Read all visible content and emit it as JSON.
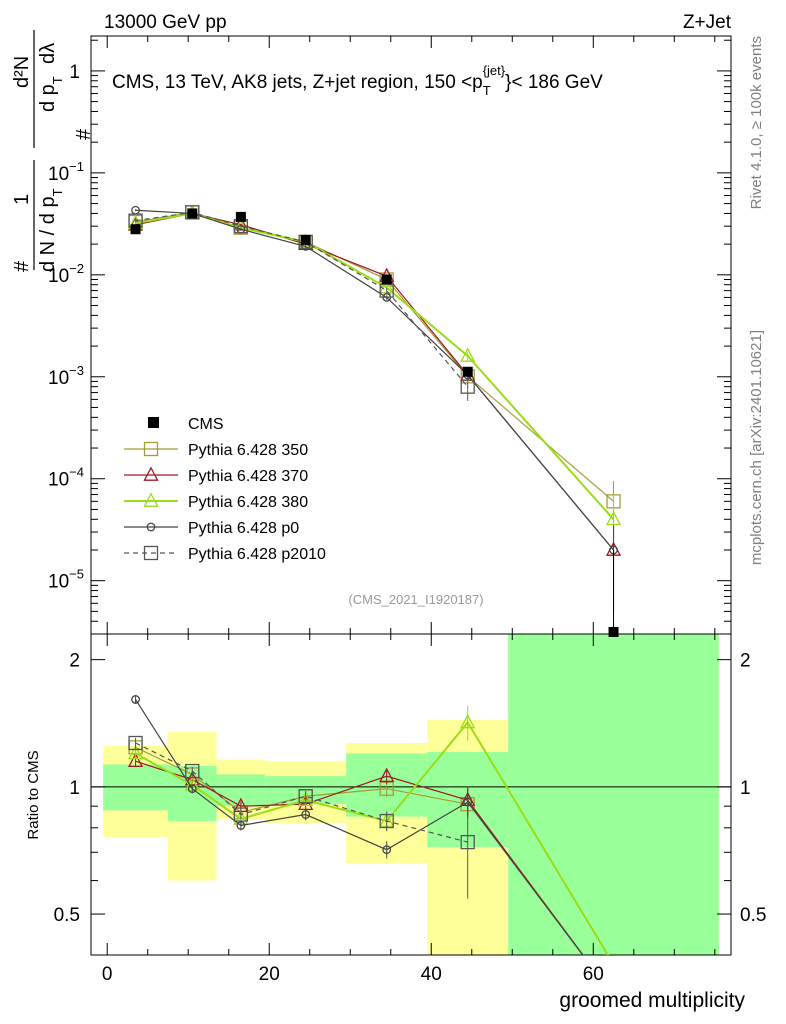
{
  "header": {
    "left_label": "13000 GeV pp",
    "right_label": "Z+Jet"
  },
  "side_labels": {
    "rivet": "Rivet 4.1.0, ≥ 100k events",
    "mcplots": "mcplots.cern.ch [arXiv:2401.10621]"
  },
  "chart_data": {
    "type": "line",
    "title": "CMS, 13 TeV, AK8 jets, Z+jet region, 150 <p_T^{jet}< 186 GeV",
    "title_parts": {
      "prefix": "CMS, 13 TeV, AK8 jets, Z+jet region, 150 <p",
      "sub": "T",
      "sup": "{jet}",
      "suffix": "}< 186 GeV"
    },
    "watermark": "(CMS_2021_I1920187)",
    "xlabel": "groomed multiplicity",
    "ylabel": "1/dN/dpT · d²N/dpT dλ",
    "ylabel_parts": {
      "hash_top": "#",
      "one": "1",
      "denominator": "d N / d p",
      "denominator_sub": "T",
      "hash_numer": "#",
      "numerator": "d²N",
      "numer_denominator": "d p",
      "numer_denominator_sub": "T",
      "lambda": "dλ"
    },
    "ratio_ylabel": "Ratio to CMS",
    "xlim": [
      -2,
      77
    ],
    "ylim_main": [
      3e-06,
      2.2
    ],
    "ylim_ratio": [
      0.4,
      2.3
    ],
    "x_ticks": [
      0,
      20,
      40,
      60
    ],
    "x_tick_labels": [
      "0",
      "20",
      "40",
      "60"
    ],
    "y_ticks_main": [
      {
        "value": 1,
        "label": "1"
      },
      {
        "value": 0.1,
        "label": "10",
        "exp": "−1"
      },
      {
        "value": 0.01,
        "label": "10",
        "exp": "−2"
      },
      {
        "value": 0.001,
        "label": "10",
        "exp": "−3"
      },
      {
        "value": 0.0001,
        "label": "10",
        "exp": "−4"
      },
      {
        "value": 1e-05,
        "label": "10",
        "exp": "−5"
      }
    ],
    "y_ticks_ratio": [
      {
        "value": 0.5,
        "label": "0.5"
      },
      {
        "value": 1,
        "label": "1"
      },
      {
        "value": 2,
        "label": "2"
      }
    ],
    "bins": [
      {
        "lo": -0.5,
        "hi": 7.5,
        "center": 3.5,
        "value": 0.028,
        "stat_lo": 0.88,
        "stat_hi": 1.13,
        "tot_lo": 0.76,
        "tot_hi": 1.25
      },
      {
        "lo": 7.5,
        "hi": 13.5,
        "center": 10.5,
        "value": 0.04,
        "stat_lo": 0.83,
        "stat_hi": 1.12,
        "tot_lo": 0.6,
        "tot_hi": 1.35
      },
      {
        "lo": 13.5,
        "hi": 19.5,
        "center": 16.5,
        "value": 0.037,
        "stat_lo": 0.9,
        "stat_hi": 1.07,
        "tot_lo": 0.84,
        "tot_hi": 1.16
      },
      {
        "lo": 19.5,
        "hi": 29.5,
        "center": 24.5,
        "value": 0.022,
        "stat_lo": 0.91,
        "stat_hi": 1.06,
        "tot_lo": 0.82,
        "tot_hi": 1.15
      },
      {
        "lo": 29.5,
        "hi": 39.5,
        "center": 34.5,
        "value": 0.009,
        "stat_lo": 0.85,
        "stat_hi": 1.2,
        "tot_lo": 0.66,
        "tot_hi": 1.27
      },
      {
        "lo": 39.5,
        "hi": 49.5,
        "center": 44.5,
        "value": 0.00112,
        "stat_lo": 0.72,
        "stat_hi": 1.21,
        "tot_lo": 0.38,
        "tot_hi": 1.44
      },
      {
        "lo": 49.5,
        "hi": 75.5,
        "center": 62.5,
        "value": 3e-06,
        "stat_lo": 0.3,
        "stat_hi": 2.5,
        "tot_lo": 0.3,
        "tot_hi": 2.5
      }
    ],
    "data_series": {
      "name": "CMS",
      "x": [
        3.5,
        10.5,
        16.5,
        24.5,
        34.5,
        44.5,
        62.5
      ],
      "y": [
        0.028,
        0.04,
        0.037,
        0.022,
        0.009,
        0.00112,
        3e-06
      ]
    },
    "series": [
      {
        "name": "Pythia 6.428 350",
        "color": "#a29c3a",
        "marker": "square",
        "dashed": false,
        "line_width": 1.2,
        "y": [
          0.033,
          0.041,
          0.029,
          0.021,
          0.009,
          0.00101,
          6e-05
        ],
        "y_err": [
          0.001,
          0.001,
          0.0008,
          0.0006,
          0.0004,
          8e-05,
          3.5e-05
        ],
        "ratio": [
          1.24,
          1.07,
          0.87,
          0.95,
          0.99,
          0.91,
          null
        ]
      },
      {
        "name": "Pythia 6.428 370",
        "color": "#9b1b22",
        "marker": "triangle",
        "dashed": false,
        "line_width": 1.2,
        "y": [
          0.031,
          0.04,
          0.031,
          0.02,
          0.0097,
          0.00104,
          2e-05
        ],
        "y_err": [
          0.001,
          0.001,
          0.0008,
          0.0006,
          0.0004,
          8e-05,
          1.5e-05
        ],
        "ratio": [
          1.15,
          1.04,
          0.9,
          0.91,
          1.06,
          0.93,
          0.32
        ]
      },
      {
        "name": "Pythia 6.428 380",
        "color": "#9adc18",
        "marker": "triangle",
        "dashed": false,
        "line_width": 2,
        "y": [
          0.032,
          0.04,
          0.029,
          0.021,
          0.0075,
          0.0016,
          4e-05
        ],
        "y_err": [
          0.001,
          0.001,
          0.0008,
          0.0006,
          0.0004,
          0.00015,
          3e-05
        ],
        "ratio": [
          1.2,
          1.01,
          0.84,
          0.93,
          0.83,
          1.42,
          0.38
        ]
      },
      {
        "name": "Pythia 6.428 p0",
        "color": "#444444",
        "marker": "circle",
        "dashed": false,
        "line_width": 1.2,
        "y": [
          0.043,
          0.04,
          0.028,
          0.019,
          0.006,
          0.00104,
          2e-05
        ],
        "y_err": [
          0.001,
          0.001,
          0.0008,
          0.0006,
          0.0003,
          8e-05,
          1.5e-05
        ],
        "ratio": [
          1.61,
          0.99,
          0.81,
          0.86,
          0.71,
          0.92,
          0.32
        ]
      },
      {
        "name": "Pythia 6.428 p2010",
        "color": "#555555",
        "marker": "square",
        "dashed": true,
        "line_width": 1.2,
        "y": [
          0.034,
          0.041,
          0.03,
          0.021,
          0.007,
          0.0008,
          null
        ],
        "y_err": [
          0.001,
          0.001,
          0.0008,
          0.0006,
          0.0004,
          0.00022,
          null
        ],
        "ratio": [
          1.27,
          1.09,
          0.86,
          0.95,
          0.83,
          0.74,
          null
        ]
      }
    ]
  }
}
